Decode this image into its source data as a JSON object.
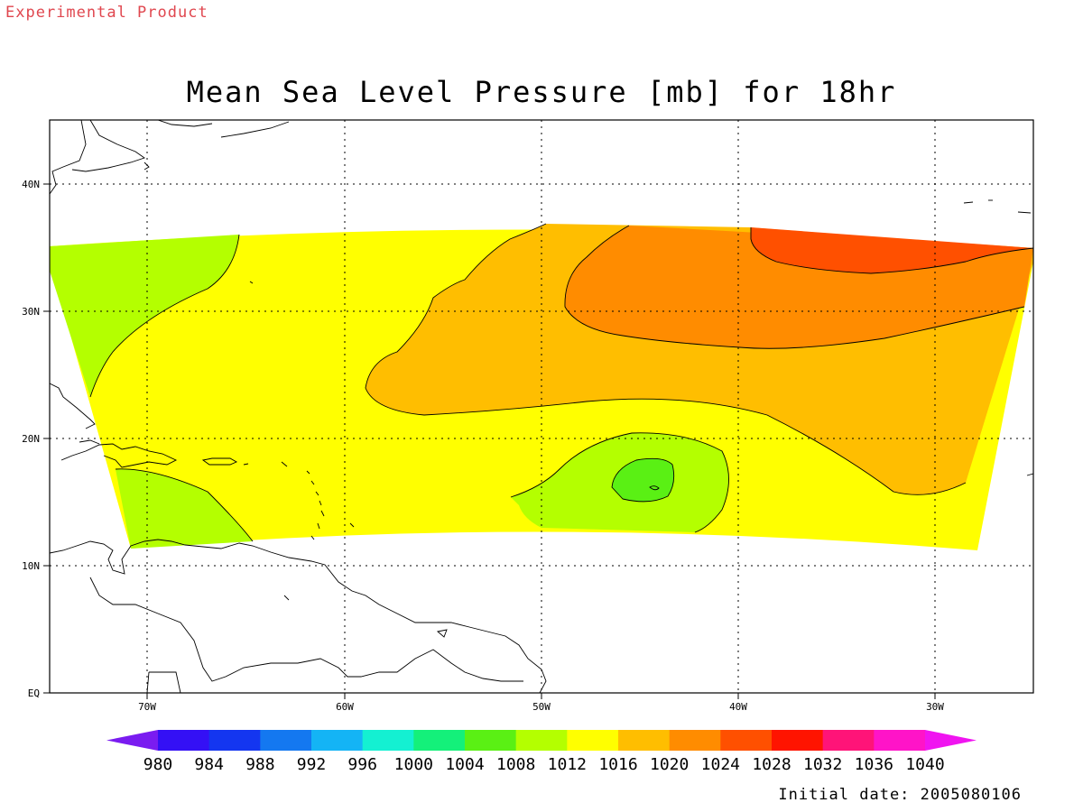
{
  "header": {
    "experimental_label": "Experimental Product"
  },
  "map": {
    "title": "Mean Sea Level Pressure [mb] for 18hr",
    "variable": "Mean Sea Level Pressure",
    "units": "mb",
    "forecast_hour": "18hr",
    "lon_range": [
      -75,
      -25
    ],
    "lat_range": [
      0,
      45
    ],
    "lon_ticks": [
      "70W",
      "60W",
      "50W",
      "40W",
      "30W"
    ],
    "lat_ticks": [
      "EQ",
      "10N",
      "20N",
      "30N",
      "40N"
    ],
    "grid": "dotted",
    "features": [
      {
        "name": "low-pressure-center",
        "lon": -44.5,
        "lat": 16,
        "value_range": "1004-1008"
      },
      {
        "name": "high-pressure-center",
        "lon": -35,
        "lat": 34,
        "value_range": "1024-1028"
      }
    ]
  },
  "colorbar": {
    "labels": [
      "980",
      "984",
      "988",
      "992",
      "996",
      "1000",
      "1004",
      "1008",
      "1012",
      "1016",
      "1020",
      "1024",
      "1028",
      "1032",
      "1036",
      "1040"
    ],
    "colors": [
      "#7a1cf0",
      "#3410f5",
      "#1436f0",
      "#1478f0",
      "#14b4f5",
      "#14f0d2",
      "#14f07a",
      "#5af014",
      "#b4ff00",
      "#ffff00",
      "#ffbe00",
      "#ff8c00",
      "#ff5000",
      "#ff1400",
      "#ff1478",
      "#ff14c8",
      "#f014f0"
    ]
  },
  "footer": {
    "initial_date": "Initial date: 2005080106"
  }
}
